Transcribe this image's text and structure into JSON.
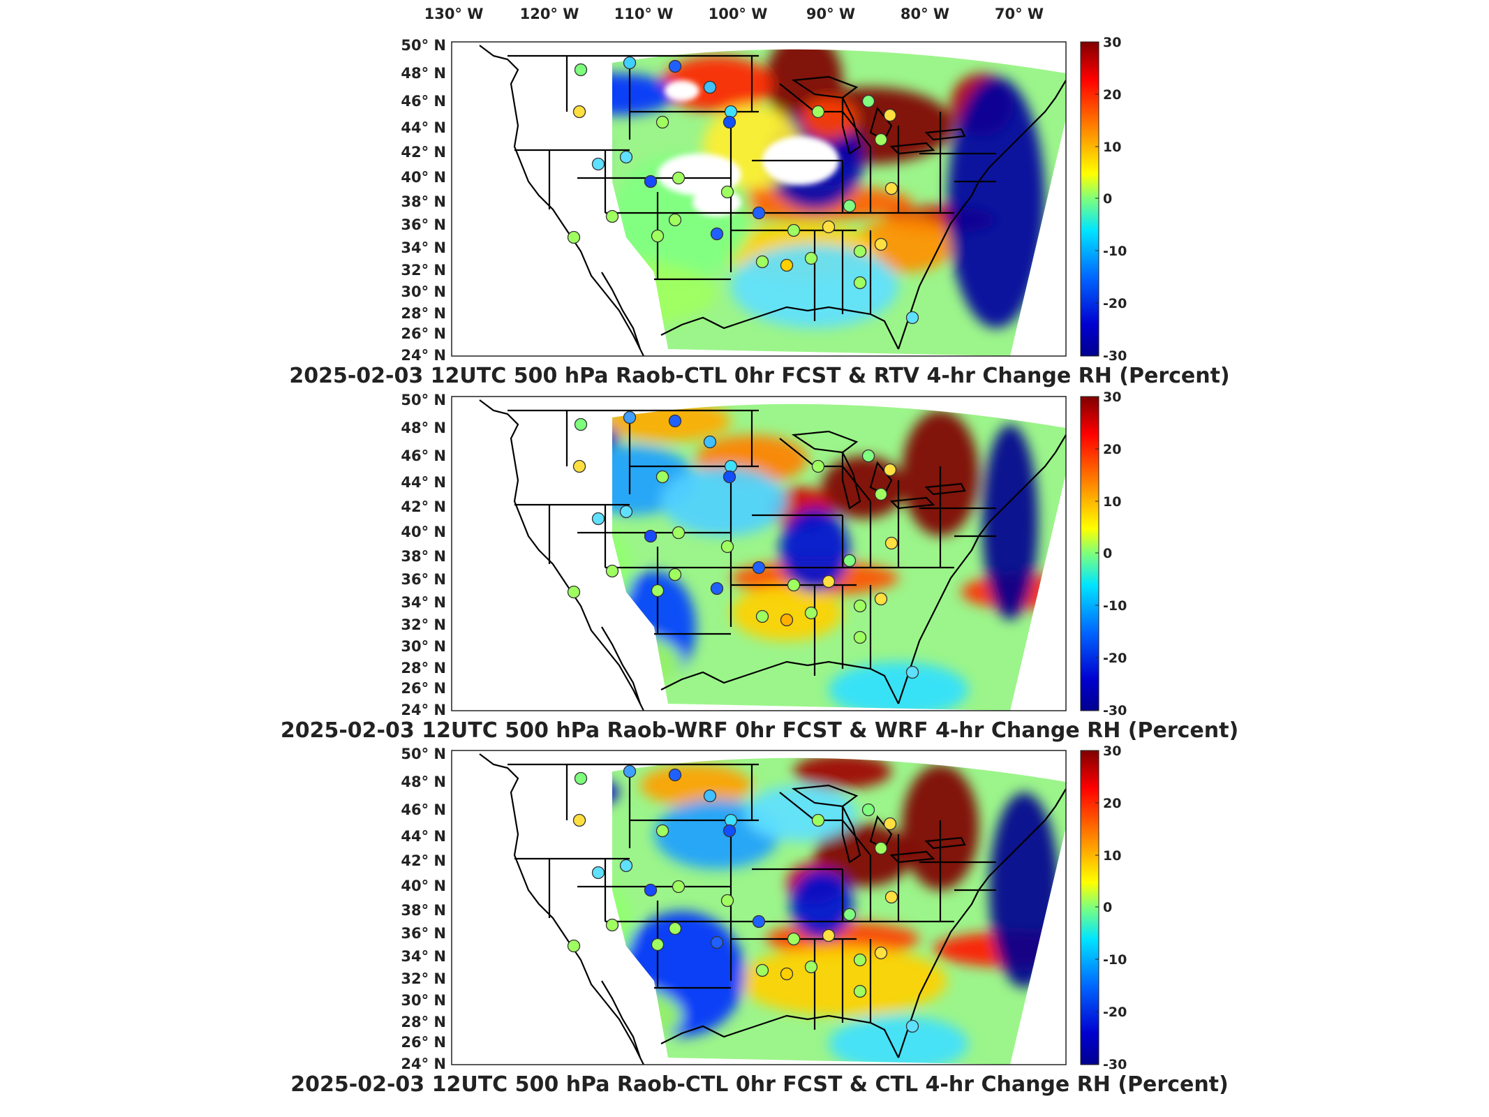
{
  "lon_labels": [
    "130° W",
    "120° W",
    "110° W",
    "100° W",
    "90° W",
    "80° W",
    "70° W"
  ],
  "lat_labels": [
    "50° N",
    "48° N",
    "46° N",
    "44° N",
    "42° N",
    "40° N",
    "38° N",
    "36° N",
    "34° N",
    "32° N",
    "30° N",
    "28° N",
    "26° N",
    "24° N"
  ],
  "colorbar": {
    "ticks": [
      "30",
      "20",
      "10",
      "0",
      "-10",
      "-20",
      "-30"
    ],
    "range": [
      -30,
      30
    ]
  },
  "panels": [
    {
      "title": "2025-02-03 12UTC 500 hPa Raob-CTL 0hr FCST & RTV 4-hr Change RH (Percent)"
    },
    {
      "title": "2025-02-03 12UTC 500 hPa Raob-WRF 0hr FCST & WRF 4-hr Change RH (Percent)"
    },
    {
      "title": "2025-02-03 12UTC 500 hPa Raob-CTL 0hr FCST & CTL 4-hr Change RH (Percent)"
    }
  ],
  "colors": {
    "dark_red": "#7f0000",
    "red": "#ff2a00",
    "yellow": "#ffee00",
    "green": "#7dfa7d",
    "cyan": "#00d0ff",
    "blue": "#0050ff",
    "dark_blue": "#00008f"
  }
}
